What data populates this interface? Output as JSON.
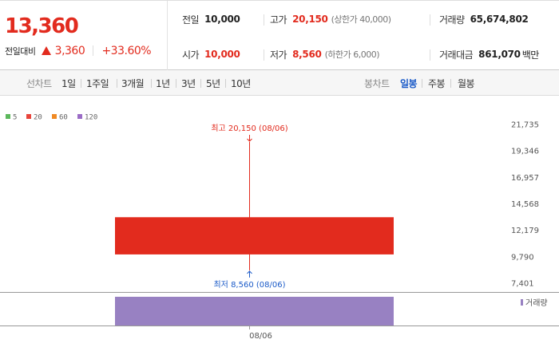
{
  "summary": {
    "current_price": "13,360",
    "change_label": "전일대비",
    "change_value": "3,360",
    "change_pct": "+33.60%",
    "prev_close": {
      "label": "전일",
      "value": "10,000"
    },
    "high": {
      "label": "고가",
      "value": "20,150",
      "note": "(상한가 40,000)"
    },
    "volume": {
      "label": "거래량",
      "value": "65,674,802"
    },
    "open": {
      "label": "시가",
      "value": "10,000"
    },
    "low": {
      "label": "저가",
      "value": "8,560",
      "note": "(하한가 6,000)"
    },
    "trade_amount": {
      "label": "거래대금",
      "value": "861,070",
      "unit": "백만"
    }
  },
  "toolbar": {
    "line_label": "선차트",
    "line_periods": [
      "1일",
      "1주일",
      "3개월",
      "1년",
      "3년",
      "5년",
      "10년"
    ],
    "candle_label": "봉차트",
    "candle_periods": [
      "일봉",
      "주봉",
      "월봉"
    ],
    "active_candle": "일봉"
  },
  "colors": {
    "up": "#e22b1e",
    "down": "#1a5ac8",
    "volume": "#9881c2",
    "ma5": "#5cb85c",
    "ma20": "#e8453c",
    "ma60": "#f08a24",
    "ma120": "#9b6cc6"
  },
  "chart_data": {
    "type": "candlestick",
    "legend": [
      {
        "label": "5",
        "color": "#5cb85c"
      },
      {
        "label": "20",
        "color": "#e8453c"
      },
      {
        "label": "60",
        "color": "#f08a24"
      },
      {
        "label": "120",
        "color": "#9b6cc6"
      }
    ],
    "y_ticks": [
      "21,735",
      "19,346",
      "16,957",
      "14,568",
      "12,179",
      "9,790",
      "7,401"
    ],
    "ylim": [
      7401,
      21735
    ],
    "candles": [
      {
        "date": "08/06",
        "open": 10000,
        "high": 20150,
        "low": 8560,
        "close": 13360,
        "volume": 65674802
      }
    ],
    "x_labels": [
      "08/06"
    ],
    "high_annotation": "최고 20,150 (08/06)",
    "low_annotation": "최저 8,560 (08/06)",
    "volume_legend": "거래량"
  }
}
